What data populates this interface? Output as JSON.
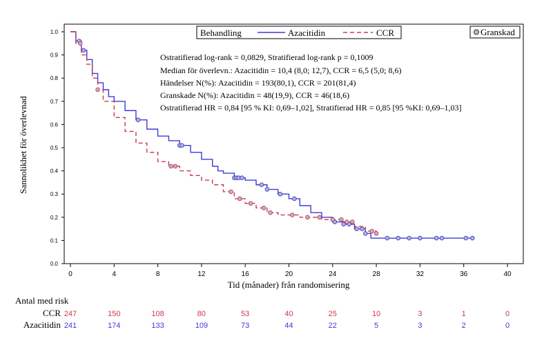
{
  "chart_data": {
    "type": "line",
    "title": "",
    "xlabel": "Tid (månader) från randomisering",
    "ylabel": "Sannolikhet för överlevnad",
    "xlim": [
      0,
      40
    ],
    "ylim": [
      0,
      1.0
    ],
    "x_ticks": [
      0,
      4,
      8,
      12,
      16,
      20,
      24,
      28,
      32,
      36,
      40
    ],
    "y_ticks": [
      0.0,
      0.1,
      0.2,
      0.3,
      0.4,
      0.5,
      0.6,
      0.7,
      0.8,
      0.9,
      1.0
    ],
    "x_tick_labels": [
      "0",
      "4",
      "8",
      "12",
      "16",
      "20",
      "24",
      "28",
      "32",
      "36",
      "40"
    ],
    "y_tick_labels": [
      "0.0",
      "0.1",
      "0.2",
      "0.3",
      "0.4",
      "0.5",
      "0.6",
      "0.7",
      "0.8",
      "0.9",
      "1.0"
    ],
    "grid": false,
    "legend": {
      "title": "Behandling",
      "placement": "top",
      "censored_label": "Granskad"
    },
    "series": [
      {
        "name": "Azacitidin",
        "color": "#3a3adc",
        "style": "solid",
        "x": [
          0,
          0.5,
          1,
          1.5,
          2,
          2.5,
          3,
          3.5,
          4,
          5,
          6,
          7,
          8,
          9,
          10,
          11,
          12,
          13,
          13.5,
          14,
          15,
          16,
          17,
          18,
          19,
          20,
          21,
          22,
          23,
          24,
          25,
          26,
          27,
          27.5,
          28,
          29,
          30,
          32,
          34,
          36,
          36.8
        ],
        "y": [
          1.0,
          0.96,
          0.92,
          0.88,
          0.82,
          0.78,
          0.75,
          0.72,
          0.7,
          0.66,
          0.62,
          0.58,
          0.55,
          0.53,
          0.51,
          0.48,
          0.45,
          0.42,
          0.4,
          0.39,
          0.37,
          0.36,
          0.34,
          0.32,
          0.3,
          0.28,
          0.25,
          0.22,
          0.2,
          0.18,
          0.17,
          0.15,
          0.13,
          0.11,
          0.11,
          0.11,
          0.11,
          0.11,
          0.11,
          0.11,
          0.11
        ]
      },
      {
        "name": "CCR",
        "color": "#c8384a",
        "style": "dashed",
        "x": [
          0,
          0.5,
          1,
          1.5,
          2,
          2.5,
          3,
          4,
          5,
          6,
          7,
          8,
          9,
          10,
          11,
          12,
          13,
          14,
          15,
          16,
          17,
          18,
          19,
          20,
          21,
          22,
          23,
          24,
          25,
          26,
          27,
          28
        ],
        "y": [
          1.0,
          0.95,
          0.9,
          0.86,
          0.8,
          0.75,
          0.7,
          0.63,
          0.57,
          0.52,
          0.48,
          0.44,
          0.42,
          0.4,
          0.38,
          0.36,
          0.34,
          0.31,
          0.28,
          0.26,
          0.24,
          0.22,
          0.21,
          0.21,
          0.2,
          0.2,
          0.19,
          0.19,
          0.18,
          0.16,
          0.14,
          0.13
        ]
      }
    ],
    "censored": {
      "Azacitidin": [
        0.8,
        1.2,
        6.2,
        10,
        10.2,
        15,
        15.2,
        15.4,
        15.7,
        17.5,
        18,
        19.2,
        20.5,
        24.2,
        25,
        25.5,
        26.2,
        26.7,
        27,
        29,
        30,
        31,
        32,
        33.5,
        34,
        36.2,
        36.8
      ],
      "CCR": [
        0.9,
        2.5,
        9.2,
        9.6,
        14.7,
        15.5,
        16.5,
        17.7,
        18.3,
        20.3,
        21.7,
        22.8,
        24,
        24.8,
        25.3,
        25.8,
        27.6,
        28
      ]
    },
    "annotations": [
      "Ostratifierad log-rank = 0,0829, Stratifierad log-rank p = 0,1009",
      "Median för överlevn.: Azacitidin = 10,4 (8,0; 12,7), CCR = 6,5 (5,0; 8,6)",
      "Händelser N(%): Azacitidin = 193(80,1), CCR = 201(81,4)",
      "Granskade N(%): Azacitidin = 48(19,9), CCR = 46(18,6)",
      "Ostratifierad HR = 0,84 [95 % KI: 0,69–1,02], Stratifierad HR = 0,85 [95 %KI: 0,69–1,03]"
    ],
    "risk_table": {
      "title": "Antal med risk",
      "rows": [
        {
          "label": "CCR",
          "color": "#c8384a",
          "values": [
            247,
            150,
            108,
            80,
            53,
            40,
            25,
            10,
            3,
            1,
            0
          ]
        },
        {
          "label": "Azacitidin",
          "color": "#3a3adc",
          "values": [
            241,
            174,
            133,
            109,
            73,
            44,
            22,
            5,
            3,
            2,
            0
          ]
        }
      ]
    }
  }
}
